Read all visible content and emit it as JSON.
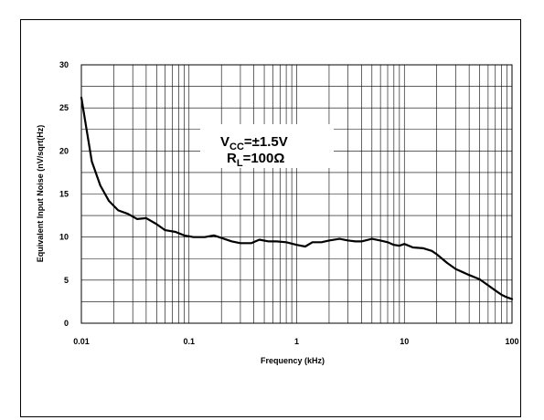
{
  "chart_data": {
    "type": "line",
    "title": "",
    "xlabel": "Frequency (kHz)",
    "ylabel": "Equivalent Input Noise (nV/sqrt(Hz)",
    "x_scale": "log",
    "xlim": [
      0.01,
      100
    ],
    "ylim": [
      0,
      30
    ],
    "x_ticks": [
      {
        "value": 0.01,
        "label": "0.01"
      },
      {
        "value": 0.1,
        "label": "0.1"
      },
      {
        "value": 1,
        "label": "1"
      },
      {
        "value": 10,
        "label": "10"
      },
      {
        "value": 100,
        "label": "100"
      }
    ],
    "y_ticks": [
      {
        "value": 0,
        "label": "0"
      },
      {
        "value": 5,
        "label": "5"
      },
      {
        "value": 10,
        "label": "10"
      },
      {
        "value": 15,
        "label": "15"
      },
      {
        "value": 20,
        "label": "20"
      },
      {
        "value": 25,
        "label": "25"
      },
      {
        "value": 30,
        "label": "30"
      }
    ],
    "grid": true,
    "annotation": {
      "line1": {
        "main": "V",
        "sub": "CC",
        "rest": "=±1.5V"
      },
      "line2": {
        "main": "R",
        "sub": "L",
        "rest": "=100Ω"
      }
    },
    "series": [
      {
        "x": [
          0.01,
          0.011,
          0.0125,
          0.015,
          0.018,
          0.022,
          0.027,
          0.033,
          0.04,
          0.05,
          0.06,
          0.075,
          0.09,
          0.11,
          0.14,
          0.17,
          0.2,
          0.25,
          0.3,
          0.38,
          0.45,
          0.55,
          0.65,
          0.8,
          1.0,
          1.2,
          1.4,
          1.7,
          2.0,
          2.5,
          3.0,
          3.5,
          4.0,
          5.0,
          6.0,
          7.0,
          8.0,
          9.0,
          10,
          12,
          15,
          18,
          20,
          25,
          30,
          40,
          50,
          60,
          70,
          80,
          90,
          100
        ],
        "values": [
          26.2,
          23.0,
          18.8,
          16.0,
          14.2,
          13.1,
          12.7,
          12.1,
          12.2,
          11.5,
          10.8,
          10.6,
          10.2,
          10.0,
          10.0,
          10.2,
          9.9,
          9.5,
          9.3,
          9.3,
          9.7,
          9.5,
          9.5,
          9.4,
          9.1,
          8.9,
          9.4,
          9.4,
          9.6,
          9.8,
          9.6,
          9.5,
          9.5,
          9.8,
          9.6,
          9.4,
          9.1,
          9.0,
          9.2,
          8.8,
          8.7,
          8.4,
          8.0,
          7.0,
          6.3,
          5.6,
          5.1,
          4.4,
          3.8,
          3.3,
          3.0,
          2.8
        ],
        "color": "#000000"
      }
    ]
  }
}
